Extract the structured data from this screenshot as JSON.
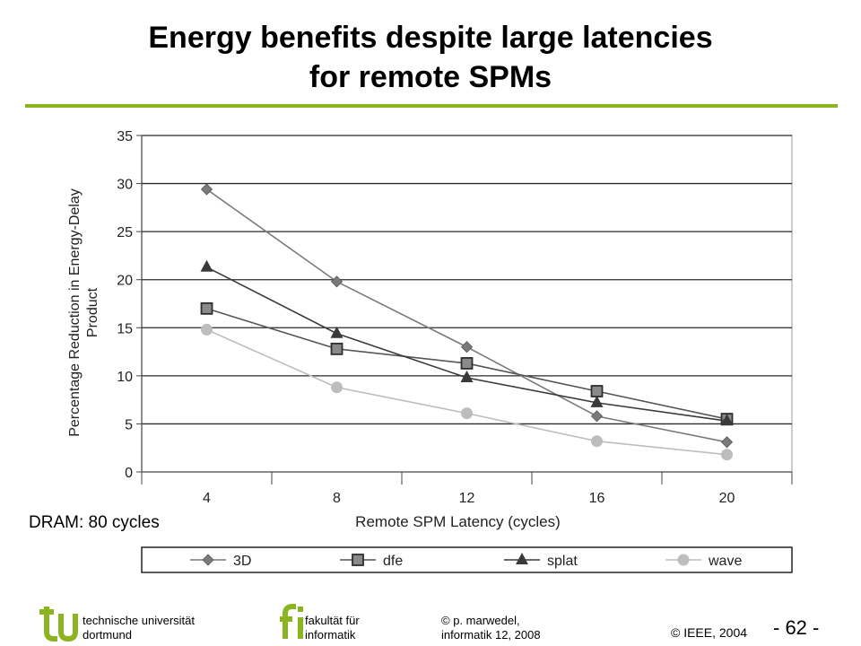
{
  "slide": {
    "title_line1": "Energy benefits despite large latencies",
    "title_line2": "for remote SPMs",
    "accent_color": "#8ab520",
    "note": "DRAM: 80 cycles"
  },
  "footer": {
    "tu_line1": "technische universität",
    "tu_line2": "dortmund",
    "fi_line1": "fakultät für",
    "fi_line2": "informatik",
    "author_line1": "© p. marwedel,",
    "author_line2": "informatik 12,  2008",
    "copyright": "© IEEE, 2004",
    "page": "- 62 -"
  },
  "chart_data": {
    "type": "line",
    "x": [
      4,
      8,
      12,
      16,
      20
    ],
    "categories": [
      "4",
      "8",
      "12",
      "16",
      "20"
    ],
    "xlabel": "Remote SPM Latency (cycles)",
    "ylabel_line1": "Percentage Reduction in Energy-Delay",
    "ylabel_line2": "Product",
    "ylim": [
      0,
      35
    ],
    "yticks": [
      "0",
      "5",
      "10",
      "15",
      "20",
      "25",
      "30",
      "35"
    ],
    "grid": true,
    "legend_position": "bottom",
    "series": [
      {
        "name": "3D",
        "marker": "diamond",
        "color": "#7a7a7a",
        "values": [
          29.4,
          19.8,
          13.0,
          5.8,
          3.1
        ]
      },
      {
        "name": "dfe",
        "marker": "square",
        "color": "#555555",
        "values": [
          17.0,
          12.8,
          11.3,
          8.4,
          5.5
        ]
      },
      {
        "name": "splat",
        "marker": "triangle",
        "color": "#3a3a3a",
        "values": [
          21.3,
          14.4,
          9.8,
          7.2,
          5.3
        ]
      },
      {
        "name": "wave",
        "marker": "circle",
        "color": "#bdbdbd",
        "values": [
          14.8,
          8.8,
          6.1,
          3.2,
          1.8
        ]
      }
    ]
  }
}
